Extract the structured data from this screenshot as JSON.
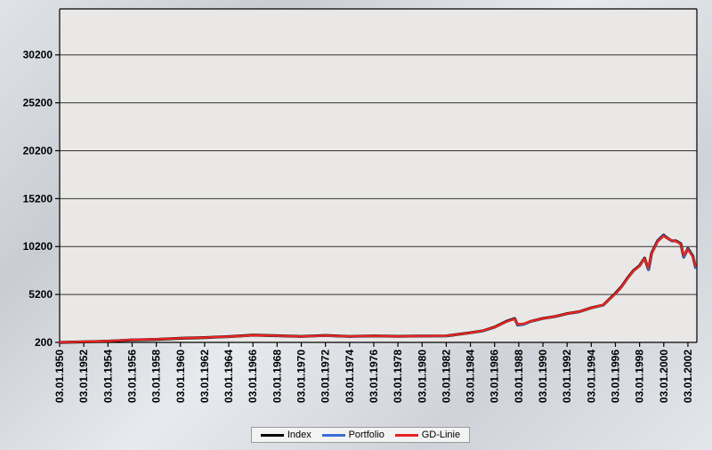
{
  "chart_data": {
    "type": "line",
    "xlabel": "",
    "ylabel": "",
    "grid": true,
    "legend_placement": "bottom-center",
    "ylim": [
      200,
      35000
    ],
    "xlim": [
      "1950-01-03",
      "2002-09-30"
    ],
    "y_ticks": [
      "200",
      "5200",
      "10200",
      "15200",
      "20200",
      "25200",
      "30200"
    ],
    "y_tick_values": [
      200,
      5200,
      10200,
      15200,
      20200,
      25200,
      30200
    ],
    "x_ticks": [
      "03.01.1950",
      "03.01.1952",
      "03.01.1954",
      "03.01.1956",
      "03.01.1958",
      "03.01.1960",
      "03.01.1962",
      "03.01.1964",
      "03.01.1966",
      "03.01.1968",
      "03.01.1970",
      "03.01.1972",
      "03.01.1974",
      "03.01.1976",
      "03.01.1978",
      "03.01.1980",
      "03.01.1982",
      "03.01.1984",
      "03.01.1986",
      "03.01.1988",
      "03.01.1990",
      "03.01.1992",
      "03.01.1994",
      "03.01.1996",
      "03.01.1998",
      "03.01.2000",
      "03.01.2002"
    ],
    "x": [
      "1950-01",
      "1952-01",
      "1954-01",
      "1956-01",
      "1958-01",
      "1960-01",
      "1962-01",
      "1964-01",
      "1966-01",
      "1968-01",
      "1970-01",
      "1972-01",
      "1974-01",
      "1976-01",
      "1978-01",
      "1980-01",
      "1982-01",
      "1984-01",
      "1985-01",
      "1986-01",
      "1987-01",
      "1987-09",
      "1987-12",
      "1988-06",
      "1989-01",
      "1990-01",
      "1991-01",
      "1992-01",
      "1993-01",
      "1994-01",
      "1995-01",
      "1996-01",
      "1996-07",
      "1997-01",
      "1997-07",
      "1998-01",
      "1998-06",
      "1998-10",
      "1999-01",
      "1999-07",
      "2000-01",
      "2000-03",
      "2000-09",
      "2001-01",
      "2001-06",
      "2001-09",
      "2002-01",
      "2002-06",
      "2002-09"
    ],
    "series": [
      {
        "name": "Index",
        "color": "#000000",
        "values": [
          200,
          260,
          330,
          460,
          520,
          630,
          700,
          800,
          950,
          900,
          820,
          920,
          820,
          880,
          830,
          870,
          880,
          1200,
          1400,
          1800,
          2400,
          2700,
          2000,
          2100,
          2400,
          2700,
          2900,
          3200,
          3400,
          3800,
          4100,
          5300,
          6000,
          6900,
          7700,
          8200,
          9000,
          7800,
          9500,
          10800,
          11400,
          11200,
          10800,
          10800,
          10500,
          9100,
          10000,
          9200,
          7900
        ]
      },
      {
        "name": "Portfolio",
        "color": "#3a6fd8",
        "values": [
          200,
          280,
          360,
          480,
          540,
          640,
          690,
          780,
          920,
          880,
          800,
          900,
          800,
          860,
          810,
          850,
          860,
          1180,
          1380,
          1780,
          2380,
          2680,
          1980,
          2080,
          2380,
          2680,
          2880,
          3180,
          3380,
          3780,
          4080,
          5280,
          5980,
          6880,
          7680,
          8180,
          8980,
          7780,
          9480,
          10780,
          11380,
          11180,
          10780,
          10780,
          10480,
          9080,
          9980,
          9180,
          7880
        ]
      },
      {
        "name": "GD-Linie",
        "color": "#e8231e",
        "values": [
          210,
          270,
          340,
          470,
          530,
          635,
          705,
          805,
          940,
          905,
          825,
          915,
          830,
          875,
          835,
          865,
          885,
          1190,
          1420,
          1790,
          2350,
          2650,
          2100,
          2150,
          2420,
          2690,
          2910,
          3190,
          3420,
          3790,
          4120,
          5250,
          5950,
          6850,
          7650,
          8150,
          8950,
          8000,
          9400,
          10700,
          11300,
          11150,
          10850,
          10750,
          10450,
          9300,
          9900,
          9150,
          8100
        ]
      }
    ]
  }
}
